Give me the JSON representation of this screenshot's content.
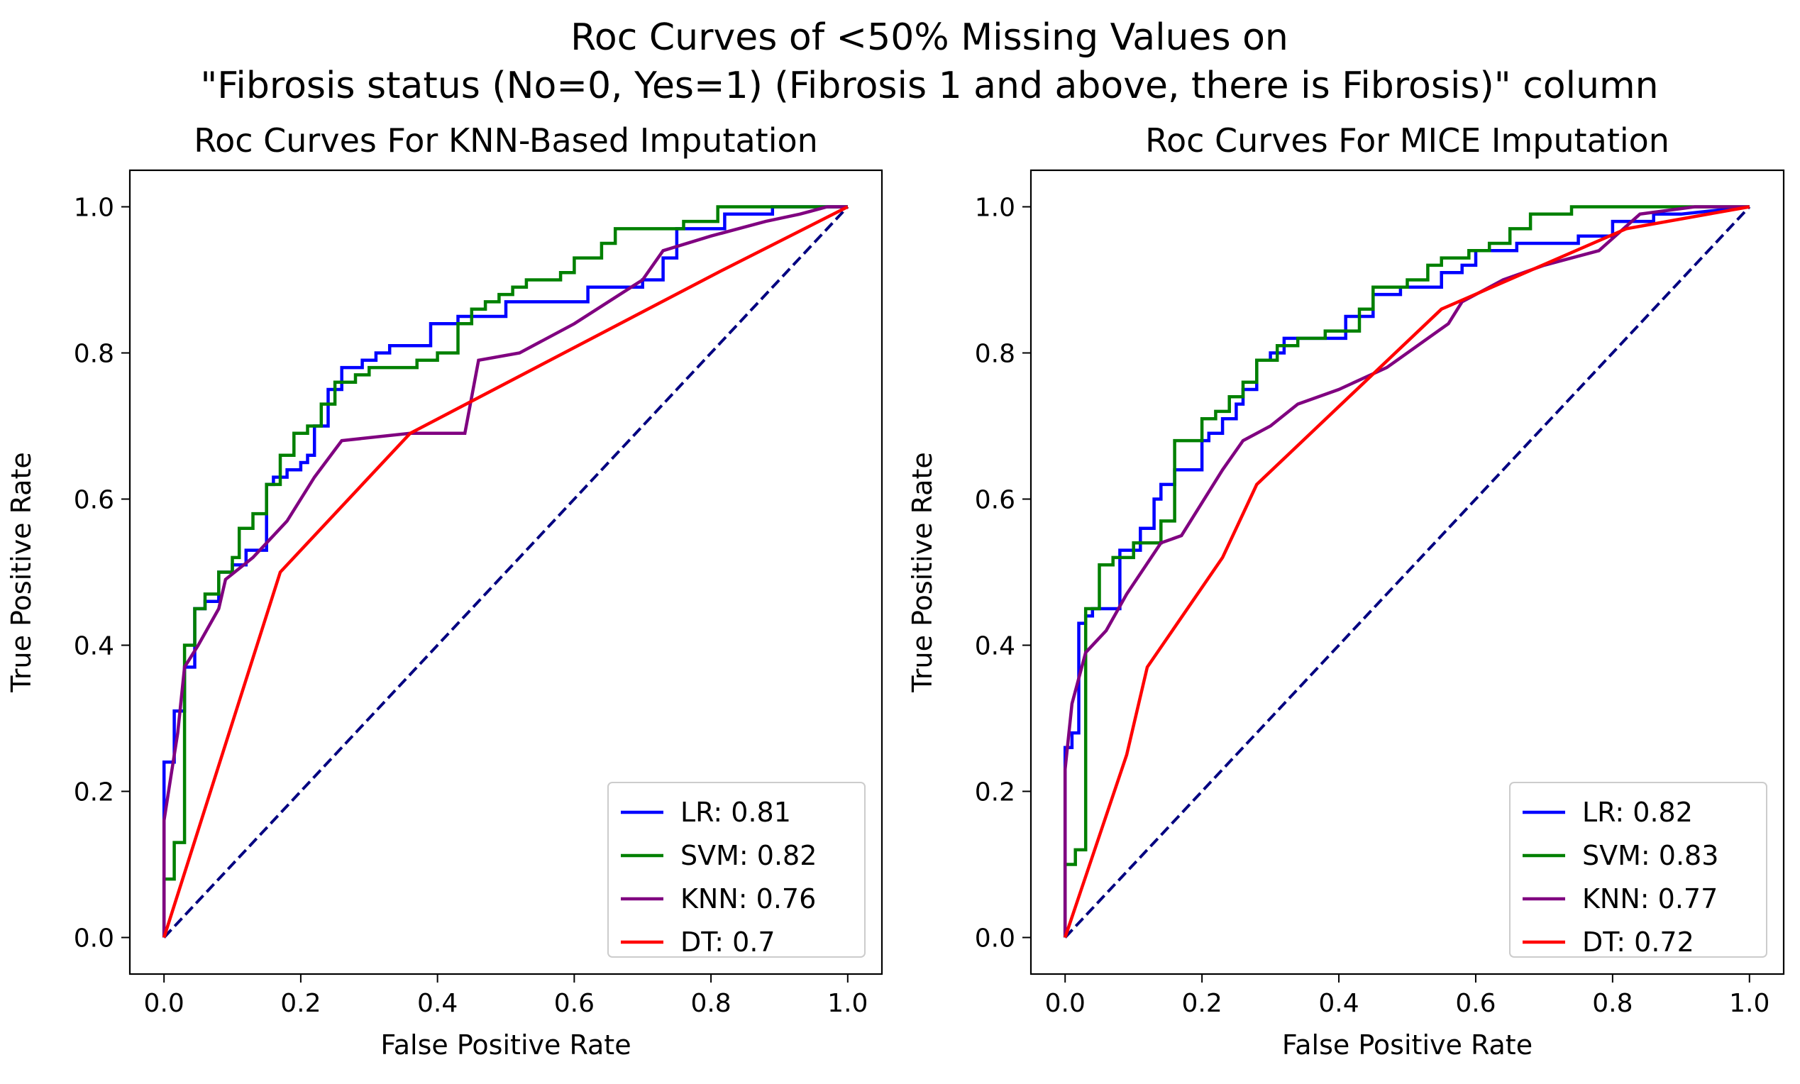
{
  "figure": {
    "title_line1": "Roc Curves of <50% Missing Values on",
    "title_line2": "\"Fibrosis status (No=0, Yes=1) (Fibrosis 1 and above, there is Fibrosis)\" column"
  },
  "chart_data": [
    {
      "type": "line",
      "title": "Roc Curves For KNN-Based Imputation",
      "xlabel": "False Positive Rate",
      "ylabel": "True Positive Rate",
      "xlim": [
        -0.05,
        1.05
      ],
      "ylim": [
        -0.05,
        1.05
      ],
      "xticks": [
        "0.0",
        "0.2",
        "0.4",
        "0.6",
        "0.8",
        "1.0"
      ],
      "yticks": [
        "0.0",
        "0.2",
        "0.4",
        "0.6",
        "0.8",
        "1.0"
      ],
      "grid": false,
      "legend_position": "lower right",
      "diagonal": {
        "color": "#000080",
        "style": "dashed"
      },
      "series": [
        {
          "name": "LR: 0.81",
          "color": "#0000ff",
          "x": [
            0.0,
            0.0,
            0.015,
            0.015,
            0.03,
            0.03,
            0.045,
            0.045,
            0.06,
            0.06,
            0.08,
            0.08,
            0.1,
            0.1,
            0.12,
            0.12,
            0.15,
            0.15,
            0.16,
            0.16,
            0.18,
            0.18,
            0.2,
            0.2,
            0.21,
            0.21,
            0.22,
            0.22,
            0.24,
            0.24,
            0.26,
            0.26,
            0.29,
            0.29,
            0.31,
            0.31,
            0.33,
            0.33,
            0.39,
            0.39,
            0.43,
            0.43,
            0.5,
            0.5,
            0.62,
            0.62,
            0.7,
            0.7,
            0.73,
            0.73,
            0.75,
            0.75,
            0.82,
            0.82,
            0.89,
            0.89,
            0.95,
            1.0
          ],
          "y": [
            0.0,
            0.24,
            0.24,
            0.31,
            0.31,
            0.37,
            0.37,
            0.45,
            0.45,
            0.46,
            0.46,
            0.5,
            0.5,
            0.51,
            0.51,
            0.53,
            0.53,
            0.62,
            0.62,
            0.63,
            0.63,
            0.64,
            0.64,
            0.65,
            0.65,
            0.66,
            0.66,
            0.7,
            0.7,
            0.75,
            0.75,
            0.78,
            0.78,
            0.79,
            0.79,
            0.8,
            0.8,
            0.81,
            0.81,
            0.84,
            0.84,
            0.85,
            0.85,
            0.87,
            0.87,
            0.89,
            0.89,
            0.9,
            0.9,
            0.93,
            0.93,
            0.97,
            0.97,
            0.99,
            0.99,
            1.0,
            1.0,
            1.0
          ]
        },
        {
          "name": "SVM: 0.82",
          "color": "#008000",
          "x": [
            0.0,
            0.0,
            0.015,
            0.015,
            0.03,
            0.03,
            0.045,
            0.045,
            0.06,
            0.06,
            0.08,
            0.08,
            0.1,
            0.1,
            0.11,
            0.11,
            0.13,
            0.13,
            0.15,
            0.15,
            0.17,
            0.17,
            0.19,
            0.19,
            0.21,
            0.21,
            0.23,
            0.23,
            0.25,
            0.25,
            0.28,
            0.28,
            0.3,
            0.3,
            0.37,
            0.37,
            0.4,
            0.4,
            0.43,
            0.43,
            0.45,
            0.45,
            0.47,
            0.47,
            0.49,
            0.49,
            0.51,
            0.51,
            0.53,
            0.53,
            0.58,
            0.58,
            0.6,
            0.6,
            0.64,
            0.64,
            0.66,
            0.66,
            0.76,
            0.76,
            0.81,
            0.81,
            0.92,
            1.0
          ],
          "y": [
            0.0,
            0.08,
            0.08,
            0.13,
            0.13,
            0.4,
            0.4,
            0.45,
            0.45,
            0.47,
            0.47,
            0.5,
            0.5,
            0.52,
            0.52,
            0.56,
            0.56,
            0.58,
            0.58,
            0.62,
            0.62,
            0.66,
            0.66,
            0.69,
            0.69,
            0.7,
            0.7,
            0.73,
            0.73,
            0.76,
            0.76,
            0.77,
            0.77,
            0.78,
            0.78,
            0.79,
            0.79,
            0.8,
            0.8,
            0.84,
            0.84,
            0.86,
            0.86,
            0.87,
            0.87,
            0.88,
            0.88,
            0.89,
            0.89,
            0.9,
            0.9,
            0.91,
            0.91,
            0.93,
            0.93,
            0.95,
            0.95,
            0.97,
            0.97,
            0.98,
            0.98,
            1.0,
            1.0,
            1.0
          ]
        },
        {
          "name": "KNN: 0.76",
          "color": "#800080",
          "x": [
            0.0,
            0.0,
            0.01,
            0.02,
            0.03,
            0.05,
            0.08,
            0.09,
            0.13,
            0.18,
            0.22,
            0.26,
            0.36,
            0.44,
            0.46,
            0.52,
            0.6,
            0.7,
            0.73,
            0.8,
            0.88,
            0.93,
            0.97,
            1.0
          ],
          "y": [
            0.0,
            0.16,
            0.22,
            0.28,
            0.37,
            0.4,
            0.45,
            0.49,
            0.52,
            0.57,
            0.63,
            0.68,
            0.69,
            0.69,
            0.79,
            0.8,
            0.84,
            0.9,
            0.94,
            0.96,
            0.98,
            0.99,
            1.0,
            1.0
          ]
        },
        {
          "name": "DT: 0.7",
          "color": "#ff0000",
          "x": [
            0.0,
            0.17,
            0.36,
            0.81,
            1.0
          ],
          "y": [
            0.0,
            0.5,
            0.69,
            0.91,
            1.0
          ]
        }
      ]
    },
    {
      "type": "line",
      "title": "Roc Curves For MICE Imputation",
      "xlabel": "False Positive Rate",
      "ylabel": "True Positive Rate",
      "xlim": [
        -0.05,
        1.05
      ],
      "ylim": [
        -0.05,
        1.05
      ],
      "xticks": [
        "0.0",
        "0.2",
        "0.4",
        "0.6",
        "0.8",
        "1.0"
      ],
      "yticks": [
        "0.0",
        "0.2",
        "0.4",
        "0.6",
        "0.8",
        "1.0"
      ],
      "grid": false,
      "legend_position": "lower right",
      "diagonal": {
        "color": "#000080",
        "style": "dashed"
      },
      "series": [
        {
          "name": "LR: 0.82",
          "color": "#0000ff",
          "x": [
            0.0,
            0.0,
            0.01,
            0.01,
            0.02,
            0.02,
            0.03,
            0.03,
            0.04,
            0.04,
            0.08,
            0.08,
            0.11,
            0.11,
            0.13,
            0.13,
            0.14,
            0.14,
            0.16,
            0.16,
            0.2,
            0.2,
            0.21,
            0.21,
            0.23,
            0.23,
            0.25,
            0.25,
            0.26,
            0.26,
            0.28,
            0.28,
            0.3,
            0.3,
            0.32,
            0.32,
            0.41,
            0.41,
            0.45,
            0.45,
            0.49,
            0.49,
            0.55,
            0.55,
            0.58,
            0.58,
            0.6,
            0.6,
            0.66,
            0.66,
            0.75,
            0.75,
            0.8,
            0.8,
            0.86,
            0.86,
            0.9,
            1.0
          ],
          "y": [
            0.0,
            0.26,
            0.26,
            0.28,
            0.28,
            0.43,
            0.43,
            0.44,
            0.44,
            0.45,
            0.45,
            0.53,
            0.53,
            0.56,
            0.56,
            0.6,
            0.6,
            0.62,
            0.62,
            0.64,
            0.64,
            0.68,
            0.68,
            0.69,
            0.69,
            0.71,
            0.71,
            0.73,
            0.73,
            0.75,
            0.75,
            0.79,
            0.79,
            0.8,
            0.8,
            0.82,
            0.82,
            0.85,
            0.85,
            0.88,
            0.88,
            0.89,
            0.89,
            0.91,
            0.91,
            0.92,
            0.92,
            0.94,
            0.94,
            0.95,
            0.95,
            0.96,
            0.96,
            0.98,
            0.98,
            0.99,
            0.99,
            1.0
          ]
        },
        {
          "name": "SVM: 0.83",
          "color": "#008000",
          "x": [
            0.0,
            0.0,
            0.015,
            0.015,
            0.03,
            0.03,
            0.05,
            0.05,
            0.07,
            0.07,
            0.1,
            0.1,
            0.14,
            0.14,
            0.16,
            0.16,
            0.2,
            0.2,
            0.22,
            0.22,
            0.24,
            0.24,
            0.26,
            0.26,
            0.28,
            0.28,
            0.31,
            0.31,
            0.34,
            0.34,
            0.38,
            0.38,
            0.43,
            0.43,
            0.45,
            0.45,
            0.5,
            0.5,
            0.53,
            0.53,
            0.55,
            0.55,
            0.59,
            0.59,
            0.62,
            0.62,
            0.65,
            0.65,
            0.68,
            0.68,
            0.74,
            0.74,
            0.83,
            0.83,
            0.94,
            1.0
          ],
          "y": [
            0.0,
            0.1,
            0.1,
            0.12,
            0.12,
            0.45,
            0.45,
            0.51,
            0.51,
            0.52,
            0.52,
            0.54,
            0.54,
            0.57,
            0.57,
            0.68,
            0.68,
            0.71,
            0.71,
            0.72,
            0.72,
            0.74,
            0.74,
            0.76,
            0.76,
            0.79,
            0.79,
            0.81,
            0.81,
            0.82,
            0.82,
            0.83,
            0.83,
            0.86,
            0.86,
            0.89,
            0.89,
            0.9,
            0.9,
            0.92,
            0.92,
            0.93,
            0.93,
            0.94,
            0.94,
            0.95,
            0.95,
            0.97,
            0.97,
            0.99,
            0.99,
            1.0,
            1.0,
            1.0,
            1.0,
            1.0
          ]
        },
        {
          "name": "KNN: 0.77",
          "color": "#800080",
          "x": [
            0.0,
            0.0,
            0.01,
            0.03,
            0.06,
            0.09,
            0.14,
            0.17,
            0.21,
            0.23,
            0.26,
            0.3,
            0.34,
            0.4,
            0.47,
            0.56,
            0.58,
            0.64,
            0.7,
            0.78,
            0.84,
            0.92,
            1.0
          ],
          "y": [
            0.0,
            0.23,
            0.32,
            0.39,
            0.42,
            0.47,
            0.54,
            0.55,
            0.61,
            0.64,
            0.68,
            0.7,
            0.73,
            0.75,
            0.78,
            0.84,
            0.87,
            0.9,
            0.92,
            0.94,
            0.99,
            1.0,
            1.0
          ]
        },
        {
          "name": "DT: 0.72",
          "color": "#ff0000",
          "x": [
            0.0,
            0.09,
            0.12,
            0.23,
            0.28,
            0.55,
            0.82,
            1.0
          ],
          "y": [
            0.0,
            0.25,
            0.37,
            0.52,
            0.62,
            0.86,
            0.97,
            1.0
          ]
        }
      ]
    }
  ]
}
